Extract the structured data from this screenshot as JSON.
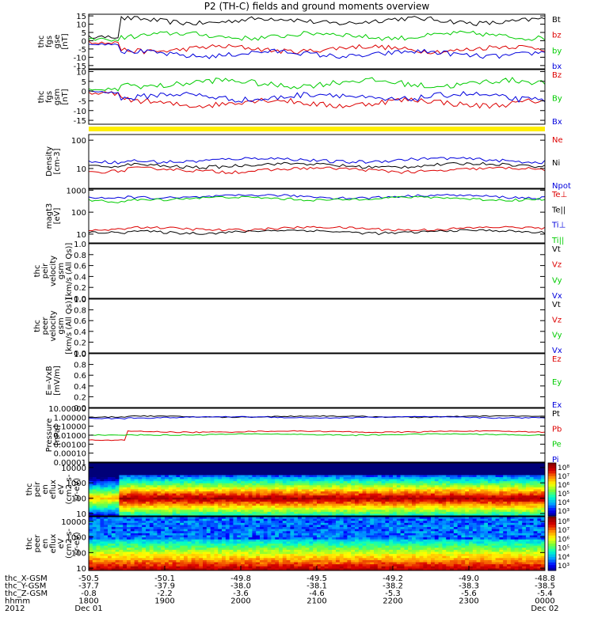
{
  "chart_data": {
    "type": "line",
    "title": "P2 (TH-C) fields and ground moments overview",
    "panels": [
      {
        "id": "fgs_gse",
        "ylabel": [
          "thc",
          "fgs",
          "gse",
          "[nT]"
        ],
        "ylim": [
          -17,
          16
        ],
        "ticks": [
          "15",
          "10",
          "5",
          "0",
          "-5",
          "-10",
          "-15"
        ],
        "tick_values": [
          15,
          10,
          5,
          0,
          -5,
          -10,
          -15
        ],
        "legend": [
          {
            "label": "Bt",
            "color": "#000000"
          },
          {
            "label": "bz",
            "color": "#dd0000"
          },
          {
            "label": "by",
            "color": "#00cc00"
          },
          {
            "label": "bx",
            "color": "#0000dd"
          }
        ]
      },
      {
        "id": "fgs_gsm",
        "ylabel": [
          "thc",
          "fgs",
          "gsm",
          "[nT]"
        ],
        "ylim": [
          -17,
          11
        ],
        "ticks": [
          "10",
          "5",
          "0",
          "-5",
          "-10",
          "-15"
        ],
        "tick_values": [
          10,
          5,
          0,
          -5,
          -10,
          -15
        ],
        "legend": [
          {
            "label": "Bz",
            "color": "#dd0000"
          },
          {
            "label": "By",
            "color": "#00cc00"
          },
          {
            "label": "Bx",
            "color": "#0000dd"
          }
        ]
      },
      {
        "id": "density",
        "ylabel": [
          "Density",
          "[cm-3]"
        ],
        "ylim_log": [
          0.3,
          2.2
        ],
        "ticks": [
          "100",
          "10"
        ],
        "tick_values": [
          100,
          10
        ],
        "legend": [
          {
            "label": "Ne",
            "color": "#dd0000"
          },
          {
            "label": "Ni",
            "color": "#000000"
          },
          {
            "label": "Npot",
            "color": "#0000dd"
          }
        ]
      },
      {
        "id": "temperature",
        "ylabel": [
          "magt3",
          "[eV]"
        ],
        "ylim_log": [
          0.6,
          3.05
        ],
        "ticks": [
          "1000",
          "100",
          "10"
        ],
        "tick_values": [
          1000,
          100,
          10
        ],
        "legend": [
          {
            "label": "Te⊥",
            "color": "#dd0000"
          },
          {
            "label": "Te||",
            "color": "#000000"
          },
          {
            "label": "Ti⊥",
            "color": "#0000dd"
          },
          {
            "label": "Ti||",
            "color": "#00cc00"
          }
        ]
      },
      {
        "id": "peir_velocity",
        "ylabel": [
          "thc",
          "peir",
          "velocity",
          "gsm",
          "[km/s (All Qs)]"
        ],
        "ylim": [
          0,
          1
        ],
        "ticks": [
          "1.0",
          "0.8",
          "0.6",
          "0.4",
          "0.2",
          "0.0"
        ],
        "tick_values": [
          1.0,
          0.8,
          0.6,
          0.4,
          0.2,
          0.0
        ],
        "legend": [
          {
            "label": "Vt",
            "color": "#000000"
          },
          {
            "label": "Vz",
            "color": "#dd0000"
          },
          {
            "label": "Vy",
            "color": "#00cc00"
          },
          {
            "label": "Vx",
            "color": "#0000dd"
          }
        ]
      },
      {
        "id": "peer_velocity",
        "ylabel": [
          "thc",
          "peer",
          "velocity",
          "gsm",
          "[km/s (All Qs)]"
        ],
        "ylim": [
          0,
          1
        ],
        "ticks": [
          "1.0",
          "0.8",
          "0.6",
          "0.4",
          "0.2",
          "0.0"
        ],
        "tick_values": [
          1.0,
          0.8,
          0.6,
          0.4,
          0.2,
          0.0
        ],
        "legend": [
          {
            "label": "Vt",
            "color": "#000000"
          },
          {
            "label": "Vz",
            "color": "#dd0000"
          },
          {
            "label": "Vy",
            "color": "#00cc00"
          },
          {
            "label": "Vx",
            "color": "#0000dd"
          }
        ]
      },
      {
        "id": "efield",
        "ylabel": [
          "E=-VxB",
          "[mV/m]"
        ],
        "ylim": [
          0,
          1
        ],
        "ticks": [
          "1.0",
          "0.8",
          "0.6",
          "0.4",
          "0.2",
          "0.0"
        ],
        "tick_values": [
          1.0,
          0.8,
          0.6,
          0.4,
          0.2,
          0.0
        ],
        "legend": [
          {
            "label": "Ez",
            "color": "#dd0000"
          },
          {
            "label": "Ey",
            "color": "#00cc00"
          },
          {
            "label": "Ex",
            "color": "#0000dd"
          }
        ]
      },
      {
        "id": "pressure",
        "ylabel": [
          "Pressure",
          "[nPa]"
        ],
        "ylim_log": [
          -5,
          1
        ],
        "ticks": [
          "10.00000",
          "1.00000",
          "0.10000",
          "0.01000",
          "0.00100",
          "0.00010",
          "0.00001"
        ],
        "tick_values": [
          10,
          1,
          0.1,
          0.01,
          0.001,
          0.0001,
          1e-05
        ],
        "legend": [
          {
            "label": "Pt",
            "color": "#000000"
          },
          {
            "label": "Pb",
            "color": "#dd0000"
          },
          {
            "label": "Pe",
            "color": "#00cc00"
          },
          {
            "label": "Pi",
            "color": "#0000dd"
          }
        ]
      },
      {
        "id": "peir_eflux",
        "ylabel": [
          "thc",
          "peir",
          "en",
          "eflux",
          "eV",
          "(cm2-s-",
          "sr-eV)"
        ],
        "ylim_log": [
          0.85,
          4.3
        ],
        "ticks": [
          "10000",
          "1000",
          "100",
          "10"
        ],
        "tick_values": [
          10000,
          1000,
          100,
          10
        ],
        "colorbar": [
          "10⁸",
          "10⁷",
          "10⁶",
          "10⁵",
          "10⁴",
          "10³"
        ]
      },
      {
        "id": "peer_eflux",
        "ylabel": [
          "thc",
          "peer",
          "en",
          "eflux",
          "eV",
          "(cm2-s-",
          "sr-eV)"
        ],
        "ylim_log": [
          0.85,
          4.3
        ],
        "ticks": [
          "10000",
          "1000",
          "100",
          "10"
        ],
        "tick_values": [
          10000,
          1000,
          100,
          10
        ],
        "colorbar": [
          "10⁸",
          "10⁷",
          "10⁶",
          "10⁵",
          "10⁴",
          "10³"
        ]
      }
    ],
    "x_axis": {
      "rows": [
        {
          "label": "thc_X-GSM",
          "values": [
            "-50.5",
            "-50.1",
            "-49.8",
            "-49.5",
            "-49.2",
            "-49.0",
            "-48.8"
          ]
        },
        {
          "label": "thc_Y-GSM",
          "values": [
            "-37.7",
            "-37.9",
            "-38.0",
            "-38.1",
            "-38.2",
            "-38.3",
            "-38.5"
          ]
        },
        {
          "label": "thc_Z-GSM",
          "values": [
            "-0.8",
            "-2.2",
            "-3.6",
            "-4.6",
            "-5.3",
            "-5.6",
            "-5.4"
          ]
        },
        {
          "label": "hhmm",
          "values": [
            "1800",
            "1900",
            "2000",
            "2100",
            "2200",
            "2300",
            "0000"
          ]
        },
        {
          "label": "2012",
          "values": [
            "Dec 01",
            "",
            "",
            "",
            "",
            "",
            "Dec 02"
          ]
        }
      ]
    }
  }
}
